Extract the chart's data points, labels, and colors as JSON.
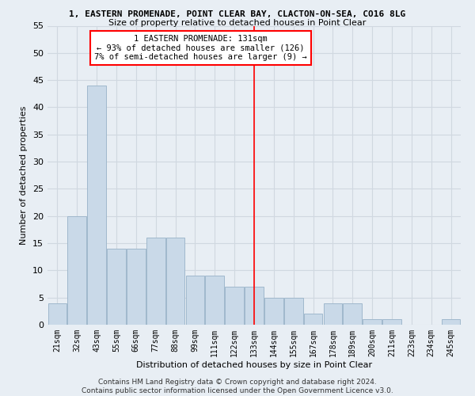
{
  "title": "1, EASTERN PROMENADE, POINT CLEAR BAY, CLACTON-ON-SEA, CO16 8LG",
  "subtitle": "Size of property relative to detached houses in Point Clear",
  "xlabel": "Distribution of detached houses by size in Point Clear",
  "ylabel": "Number of detached properties",
  "categories": [
    "21sqm",
    "32sqm",
    "43sqm",
    "55sqm",
    "66sqm",
    "77sqm",
    "88sqm",
    "99sqm",
    "111sqm",
    "122sqm",
    "133sqm",
    "144sqm",
    "155sqm",
    "167sqm",
    "178sqm",
    "189sqm",
    "200sqm",
    "211sqm",
    "223sqm",
    "234sqm",
    "245sqm"
  ],
  "values": [
    4,
    20,
    44,
    14,
    14,
    16,
    16,
    9,
    9,
    7,
    7,
    5,
    5,
    2,
    4,
    4,
    1,
    1,
    0,
    0,
    1
  ],
  "bar_color": "#c9d9e8",
  "bar_edgecolor": "#a0b8cc",
  "grid_color": "#d0d8e0",
  "bg_color": "#e8eef4",
  "vline_x_index": 10,
  "vline_color": "red",
  "annotation_text": "1 EASTERN PROMENADE: 131sqm\n← 93% of detached houses are smaller (126)\n7% of semi-detached houses are larger (9) →",
  "annotation_box_edgecolor": "red",
  "footer": "Contains HM Land Registry data © Crown copyright and database right 2024.\nContains public sector information licensed under the Open Government Licence v3.0.",
  "ylim": [
    0,
    55
  ],
  "yticks": [
    0,
    5,
    10,
    15,
    20,
    25,
    30,
    35,
    40,
    45,
    50,
    55
  ],
  "title_fontsize": 8,
  "subtitle_fontsize": 8
}
